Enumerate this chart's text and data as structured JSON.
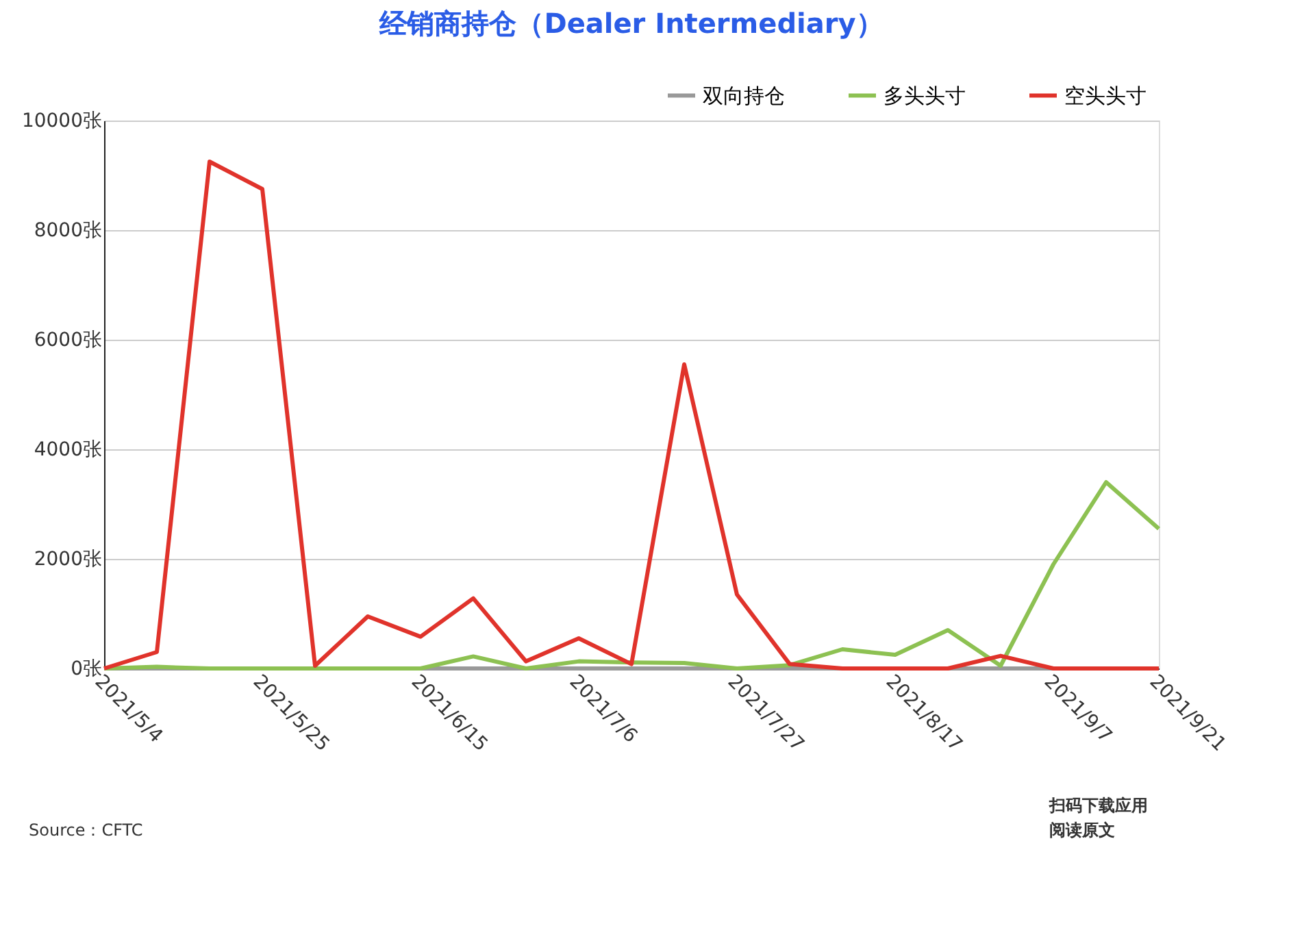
{
  "chart_data": {
    "type": "line",
    "title": "经销商持仓（Dealer Intermediary）",
    "categories": [
      "2021/5/4",
      null,
      null,
      "2021/5/25",
      null,
      null,
      "2021/6/15",
      null,
      null,
      "2021/7/6",
      null,
      null,
      "2021/7/27",
      null,
      null,
      "2021/8/17",
      null,
      null,
      "2021/9/7",
      null,
      "2021/9/21"
    ],
    "series": [
      {
        "name": "双向持仓",
        "color": "#999999",
        "values": [
          0,
          0,
          0,
          0,
          0,
          0,
          0,
          0,
          0,
          0,
          0,
          0,
          0,
          0,
          0,
          0,
          0,
          0,
          0,
          0,
          0
        ]
      },
      {
        "name": "多头头寸",
        "color": "#8dc152",
        "values": [
          0,
          30,
          0,
          0,
          0,
          0,
          0,
          220,
          0,
          130,
          110,
          100,
          0,
          60,
          350,
          250,
          700,
          50,
          1900,
          3400,
          2550
        ]
      },
      {
        "name": "空头头寸",
        "color": "#e0332b",
        "values": [
          0,
          300,
          9250,
          8750,
          50,
          950,
          580,
          1280,
          130,
          550,
          80,
          5550,
          1350,
          80,
          0,
          0,
          0,
          230,
          0,
          0,
          0
        ]
      }
    ],
    "ylim": [
      0,
      10000
    ],
    "yticks": [
      {
        "value": 0,
        "label": "0张"
      },
      {
        "value": 2000,
        "label": "2000张"
      },
      {
        "value": 4000,
        "label": "4000张"
      },
      {
        "value": 6000,
        "label": "6000张"
      },
      {
        "value": 8000,
        "label": "8000张"
      },
      {
        "value": 10000,
        "label": "10000张"
      }
    ],
    "grid": "y",
    "legend": "top right",
    "marker": "none",
    "line_style": "solid",
    "annotations": [
      "Source：CFTC",
      "扫码下载应用",
      "阅读原文"
    ]
  }
}
